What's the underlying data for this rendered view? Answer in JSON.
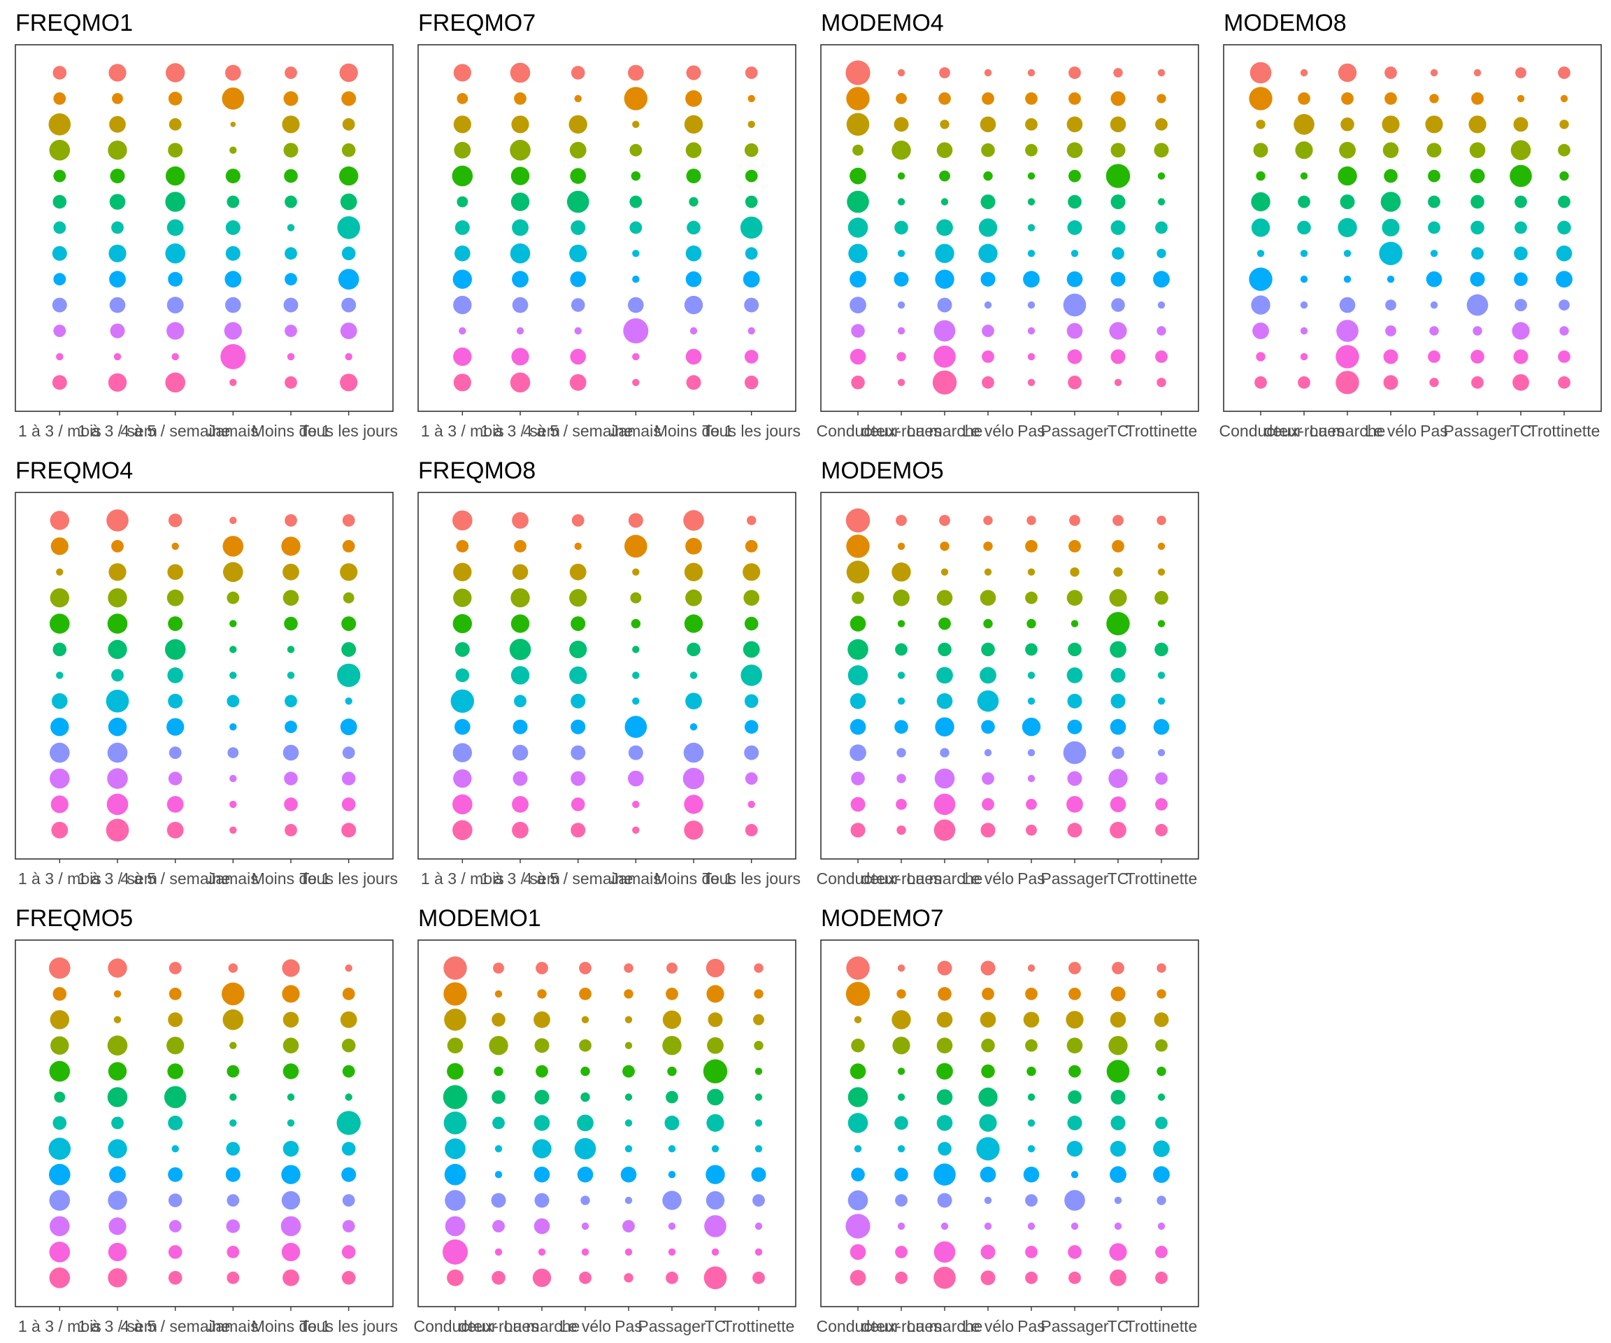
{
  "colors": [
    "#F8766D",
    "#E18A00",
    "#BE9C00",
    "#8CAB00",
    "#24B700",
    "#00BE70",
    "#00C1AB",
    "#00BBDA",
    "#00ACFC",
    "#8B93FF",
    "#D575FE",
    "#F962DD",
    "#FF65AC"
  ],
  "size_scale": {
    "min_radius": 1.5,
    "max_radius": 18
  },
  "chart_data": [
    {
      "type": "scatter",
      "title": "FREQMO1",
      "categories": [
        "1 à 3 / mois",
        "1 à 3 / sem",
        "4 à 5 / semaine",
        "Jamais",
        "Moins de 1",
        "Tous les jours"
      ],
      "rows": 13,
      "values": [
        [
          0.25,
          0.45,
          0.55,
          0.35,
          0.2,
          0.5
        ],
        [
          0.2,
          0.15,
          0.25,
          0.75,
          0.3,
          0.3
        ],
        [
          0.75,
          0.4,
          0.2,
          0.02,
          0.45,
          0.2
        ],
        [
          0.65,
          0.55,
          0.3,
          0.05,
          0.3,
          0.25
        ],
        [
          0.2,
          0.3,
          0.55,
          0.3,
          0.25,
          0.55
        ],
        [
          0.25,
          0.35,
          0.6,
          0.2,
          0.2,
          0.4
        ],
        [
          0.2,
          0.2,
          0.4,
          0.3,
          0.05,
          0.8
        ],
        [
          0.3,
          0.45,
          0.6,
          0.3,
          0.2,
          0.25
        ],
        [
          0.2,
          0.4,
          0.3,
          0.4,
          0.2,
          0.65
        ],
        [
          0.3,
          0.35,
          0.4,
          0.35,
          0.3,
          0.3
        ],
        [
          0.2,
          0.3,
          0.45,
          0.45,
          0.2,
          0.4
        ],
        [
          0.05,
          0.05,
          0.05,
          1.0,
          0.05,
          0.05
        ],
        [
          0.3,
          0.5,
          0.6,
          0.05,
          0.2,
          0.45
        ]
      ]
    },
    {
      "type": "scatter",
      "title": "FREQMO7",
      "categories": [
        "1 à 3 / mois",
        "1 à 3 / sem",
        "4 à 5 / semaine",
        "Jamais",
        "Moins de 1",
        "Tous les jours"
      ],
      "rows": 13,
      "values": [
        [
          0.45,
          0.6,
          0.25,
          0.35,
          0.3,
          0.2
        ],
        [
          0.15,
          0.2,
          0.05,
          0.85,
          0.4,
          0.05
        ],
        [
          0.45,
          0.45,
          0.5,
          0.05,
          0.5,
          0.05
        ],
        [
          0.4,
          0.65,
          0.4,
          0.2,
          0.35,
          0.25
        ],
        [
          0.65,
          0.5,
          0.35,
          0.1,
          0.3,
          0.2
        ],
        [
          0.15,
          0.5,
          0.75,
          0.2,
          0.1,
          0.2
        ],
        [
          0.3,
          0.4,
          0.3,
          0.2,
          0.25,
          0.75
        ],
        [
          0.35,
          0.6,
          0.45,
          0.05,
          0.35,
          0.2
        ],
        [
          0.55,
          0.4,
          0.35,
          0.05,
          0.35,
          0.4
        ],
        [
          0.5,
          0.35,
          0.25,
          0.35,
          0.5,
          0.3
        ],
        [
          0.05,
          0.05,
          0.05,
          1.0,
          0.05,
          0.05
        ],
        [
          0.5,
          0.45,
          0.35,
          0.05,
          0.35,
          0.25
        ],
        [
          0.45,
          0.6,
          0.4,
          0.05,
          0.3,
          0.25
        ]
      ]
    },
    {
      "type": "scatter",
      "title": "MODEMO4",
      "categories": [
        "Conducteur",
        "deux-roues",
        "La marche",
        "Le vélo",
        "Pas",
        "Passager",
        "TC",
        "Trottinette"
      ],
      "rows": 13,
      "values": [
        [
          0.95,
          0.05,
          0.15,
          0.05,
          0.05,
          0.2,
          0.1,
          0.05
        ],
        [
          0.85,
          0.15,
          0.2,
          0.2,
          0.2,
          0.2,
          0.3,
          0.1
        ],
        [
          0.8,
          0.3,
          0.1,
          0.35,
          0.2,
          0.35,
          0.35,
          0.2
        ],
        [
          0.15,
          0.55,
          0.35,
          0.25,
          0.2,
          0.35,
          0.3,
          0.3
        ],
        [
          0.4,
          0.05,
          0.15,
          0.1,
          0.05,
          0.2,
          0.9,
          0.05
        ],
        [
          0.75,
          0.05,
          0.05,
          0.3,
          0.05,
          0.25,
          0.3,
          0.05
        ],
        [
          0.6,
          0.25,
          0.4,
          0.5,
          0.05,
          0.3,
          0.3,
          0.2
        ],
        [
          0.55,
          0.05,
          0.55,
          0.55,
          0.05,
          0.05,
          0.2,
          0.1
        ],
        [
          0.4,
          0.3,
          0.55,
          0.3,
          0.4,
          0.35,
          0.3,
          0.4
        ],
        [
          0.4,
          0.05,
          0.3,
          0.05,
          0.05,
          0.8,
          0.25,
          0.05
        ],
        [
          0.25,
          0.05,
          0.7,
          0.2,
          0.05,
          0.35,
          0.45,
          0.1
        ],
        [
          0.35,
          0.1,
          0.75,
          0.2,
          0.05,
          0.3,
          0.3,
          0.2
        ],
        [
          0.25,
          0.05,
          0.9,
          0.2,
          0.05,
          0.25,
          0.05,
          0.1
        ]
      ]
    },
    {
      "type": "scatter",
      "title": "MODEMO8",
      "categories": [
        "Conducteur",
        "deux-roues",
        "La marche",
        "Le vélo",
        "Pas",
        "Passager",
        "TC",
        "Trottinette"
      ],
      "rows": 13,
      "values": [
        [
          0.7,
          0.05,
          0.5,
          0.2,
          0.05,
          0.05,
          0.15,
          0.2
        ],
        [
          0.85,
          0.2,
          0.2,
          0.2,
          0.1,
          0.2,
          0.05,
          0.05
        ],
        [
          0.1,
          0.65,
          0.25,
          0.45,
          0.45,
          0.45,
          0.3,
          0.1
        ],
        [
          0.3,
          0.45,
          0.4,
          0.35,
          0.3,
          0.35,
          0.6,
          0.2
        ],
        [
          0.1,
          0.05,
          0.55,
          0.25,
          0.2,
          0.3,
          0.75,
          0.1
        ],
        [
          0.55,
          0.2,
          0.3,
          0.6,
          0.2,
          0.25,
          0.2,
          0.2
        ],
        [
          0.5,
          0.25,
          0.55,
          0.45,
          0.2,
          0.25,
          0.2,
          0.25
        ],
        [
          0.05,
          0.05,
          0.05,
          0.85,
          0.05,
          0.2,
          0.25,
          0.35
        ],
        [
          0.85,
          0.05,
          0.05,
          0.05,
          0.35,
          0.3,
          0.25,
          0.4
        ],
        [
          0.55,
          0.05,
          0.35,
          0.15,
          0.05,
          0.7,
          0.2,
          0.15
        ],
        [
          0.4,
          0.05,
          0.75,
          0.15,
          0.1,
          0.1,
          0.45,
          0.1
        ],
        [
          0.1,
          0.05,
          0.85,
          0.3,
          0.2,
          0.25,
          0.3,
          0.2
        ],
        [
          0.2,
          0.2,
          0.85,
          0.3,
          0.1,
          0.2,
          0.4,
          0.2
        ]
      ]
    },
    {
      "type": "scatter",
      "title": "FREQMO4",
      "categories": [
        "1 à 3 / mois",
        "1 à 3 / sem",
        "4 à 5 / semaine",
        "Jamais",
        "Moins de 1",
        "Tous les jours"
      ],
      "rows": 13,
      "values": [
        [
          0.55,
          0.75,
          0.25,
          0.05,
          0.2,
          0.2
        ],
        [
          0.45,
          0.2,
          0.05,
          0.65,
          0.55,
          0.2
        ],
        [
          0.05,
          0.45,
          0.35,
          0.6,
          0.4,
          0.45
        ],
        [
          0.55,
          0.55,
          0.4,
          0.2,
          0.35,
          0.15
        ],
        [
          0.6,
          0.6,
          0.3,
          0.05,
          0.25,
          0.3
        ],
        [
          0.25,
          0.55,
          0.65,
          0.05,
          0.05,
          0.3
        ],
        [
          0.05,
          0.2,
          0.35,
          0.05,
          0.05,
          0.85
        ],
        [
          0.35,
          0.8,
          0.3,
          0.2,
          0.2,
          0.05
        ],
        [
          0.5,
          0.5,
          0.45,
          0.05,
          0.2,
          0.4
        ],
        [
          0.6,
          0.6,
          0.2,
          0.15,
          0.35,
          0.2
        ],
        [
          0.6,
          0.65,
          0.25,
          0.05,
          0.25,
          0.25
        ],
        [
          0.45,
          0.7,
          0.4,
          0.05,
          0.25,
          0.25
        ],
        [
          0.4,
          0.8,
          0.4,
          0.05,
          0.2,
          0.3
        ]
      ]
    },
    {
      "type": "scatter",
      "title": "FREQMO8",
      "categories": [
        "1 à 3 / mois",
        "1 à 3 / sem",
        "4 à 5 / semaine",
        "Jamais",
        "Moins de 1",
        "Tous les jours"
      ],
      "rows": 13,
      "values": [
        [
          0.6,
          0.4,
          0.2,
          0.3,
          0.65,
          0.1
        ],
        [
          0.2,
          0.2,
          0.05,
          0.8,
          0.4,
          0.2
        ],
        [
          0.5,
          0.35,
          0.4,
          0.05,
          0.5,
          0.45
        ],
        [
          0.5,
          0.55,
          0.45,
          0.15,
          0.4,
          0.35
        ],
        [
          0.55,
          0.5,
          0.3,
          0.1,
          0.5,
          0.25
        ],
        [
          0.3,
          0.7,
          0.45,
          0.05,
          0.25,
          0.4
        ],
        [
          0.25,
          0.5,
          0.45,
          0.05,
          0.05,
          0.7
        ],
        [
          0.85,
          0.2,
          0.3,
          0.05,
          0.4,
          0.25
        ],
        [
          0.35,
          0.3,
          0.3,
          0.75,
          0.05,
          0.25
        ],
        [
          0.55,
          0.35,
          0.3,
          0.3,
          0.6,
          0.3
        ],
        [
          0.5,
          0.3,
          0.3,
          0.35,
          0.7,
          0.2
        ],
        [
          0.6,
          0.4,
          0.25,
          0.05,
          0.55,
          0.05
        ],
        [
          0.6,
          0.4,
          0.3,
          0.05,
          0.55,
          0.2
        ]
      ]
    },
    {
      "type": "scatter",
      "title": "MODEMO5",
      "categories": [
        "Conducteur",
        "deux-roues",
        "La marche",
        "Le vélo",
        "Pas",
        "Passager",
        "TC",
        "Trottinette"
      ],
      "rows": 13,
      "values": [
        [
          0.9,
          0.15,
          0.15,
          0.1,
          0.1,
          0.15,
          0.15,
          0.1
        ],
        [
          0.85,
          0.05,
          0.1,
          0.1,
          0.2,
          0.2,
          0.2,
          0.05
        ],
        [
          0.8,
          0.55,
          0.05,
          0.05,
          0.05,
          0.1,
          0.1,
          0.05
        ],
        [
          0.2,
          0.4,
          0.35,
          0.35,
          0.2,
          0.35,
          0.45,
          0.25
        ],
        [
          0.35,
          0.05,
          0.2,
          0.1,
          0.1,
          0.05,
          0.85,
          0.05
        ],
        [
          0.65,
          0.2,
          0.25,
          0.25,
          0.2,
          0.25,
          0.4,
          0.25
        ],
        [
          0.6,
          0.05,
          0.4,
          0.4,
          0.05,
          0.35,
          0.3,
          0.05
        ],
        [
          0.35,
          0.05,
          0.35,
          0.7,
          0.05,
          0.3,
          0.3,
          0.05
        ],
        [
          0.35,
          0.25,
          0.55,
          0.25,
          0.5,
          0.3,
          0.35,
          0.35
        ],
        [
          0.4,
          0.1,
          0.1,
          0.05,
          0.05,
          0.8,
          0.2,
          0.05
        ],
        [
          0.25,
          0.1,
          0.6,
          0.2,
          0.05,
          0.3,
          0.55,
          0.2
        ],
        [
          0.3,
          0.15,
          0.7,
          0.2,
          0.15,
          0.4,
          0.35,
          0.2
        ],
        [
          0.3,
          0.1,
          0.7,
          0.3,
          0.15,
          0.3,
          0.4,
          0.2
        ]
      ]
    },
    {
      "type": "scatter",
      "title": "FREQMO5",
      "categories": [
        "1 à 3 / mois",
        "1 à 3 / sem",
        "4 à 5 / semaine",
        "Jamais",
        "Moins de 1",
        "Tous les jours"
      ],
      "rows": 13,
      "values": [
        [
          0.7,
          0.55,
          0.2,
          0.1,
          0.45,
          0.05
        ],
        [
          0.25,
          0.05,
          0.2,
          0.8,
          0.45,
          0.2
        ],
        [
          0.55,
          0.05,
          0.3,
          0.65,
          0.35,
          0.4
        ],
        [
          0.5,
          0.6,
          0.45,
          0.05,
          0.35,
          0.25
        ],
        [
          0.65,
          0.5,
          0.35,
          0.2,
          0.35,
          0.2
        ],
        [
          0.15,
          0.6,
          0.75,
          0.05,
          0.05,
          0.05
        ],
        [
          0.25,
          0.2,
          0.3,
          0.05,
          0.05,
          0.9
        ],
        [
          0.75,
          0.55,
          0.05,
          0.25,
          0.35,
          0.25
        ],
        [
          0.7,
          0.4,
          0.3,
          0.3,
          0.55,
          0.3
        ],
        [
          0.65,
          0.55,
          0.25,
          0.2,
          0.5,
          0.2
        ],
        [
          0.6,
          0.45,
          0.2,
          0.25,
          0.6,
          0.2
        ],
        [
          0.65,
          0.5,
          0.25,
          0.2,
          0.5,
          0.25
        ],
        [
          0.65,
          0.55,
          0.25,
          0.2,
          0.4,
          0.25
        ]
      ]
    },
    {
      "type": "scatter",
      "title": "MODEMO1",
      "categories": [
        "Conducteur",
        "deux-roues",
        "La marche",
        "Le vélo",
        "Pas",
        "Passager",
        "TC",
        "Trottinette"
      ],
      "rows": 13,
      "values": [
        [
          0.85,
          0.15,
          0.2,
          0.2,
          0.1,
          0.15,
          0.5,
          0.1
        ],
        [
          0.85,
          0.05,
          0.1,
          0.2,
          0.1,
          0.2,
          0.45,
          0.1
        ],
        [
          0.75,
          0.25,
          0.4,
          0.05,
          0.05,
          0.5,
          0.3,
          0.15
        ],
        [
          0.35,
          0.55,
          0.3,
          0.2,
          0.05,
          0.55,
          0.4,
          0.1
        ],
        [
          0.4,
          0.1,
          0.2,
          0.1,
          0.2,
          0.1,
          0.9,
          0.05
        ],
        [
          0.9,
          0.25,
          0.3,
          0.1,
          0.05,
          0.2,
          0.4,
          0.05
        ],
        [
          0.8,
          0.2,
          0.35,
          0.4,
          0.05,
          0.3,
          0.45,
          0.05
        ],
        [
          0.65,
          0.05,
          0.55,
          0.7,
          0.05,
          0.05,
          0.05,
          0.05
        ],
        [
          0.7,
          0.05,
          0.35,
          0.35,
          0.35,
          0.05,
          0.55,
          0.3
        ],
        [
          0.65,
          0.3,
          0.3,
          0.1,
          0.05,
          0.55,
          0.5,
          0.2
        ],
        [
          0.6,
          0.2,
          0.35,
          0.05,
          0.2,
          0.05,
          0.75,
          0.05
        ],
        [
          1.0,
          0.05,
          0.05,
          0.05,
          0.05,
          0.05,
          0.05,
          0.05
        ],
        [
          0.4,
          0.25,
          0.5,
          0.2,
          0.1,
          0.2,
          0.8,
          0.2
        ]
      ]
    },
    {
      "type": "scatter",
      "title": "MODEMO7",
      "categories": [
        "Conducteur",
        "deux-roues",
        "La marche",
        "Le vélo",
        "Pas",
        "Passager",
        "TC",
        "Trottinette"
      ],
      "rows": 13,
      "values": [
        [
          0.85,
          0.05,
          0.3,
          0.3,
          0.05,
          0.2,
          0.2,
          0.1
        ],
        [
          0.9,
          0.1,
          0.25,
          0.2,
          0.2,
          0.2,
          0.3,
          0.1
        ],
        [
          0.05,
          0.55,
          0.35,
          0.35,
          0.35,
          0.45,
          0.35,
          0.3
        ],
        [
          0.25,
          0.45,
          0.35,
          0.25,
          0.2,
          0.35,
          0.55,
          0.2
        ],
        [
          0.35,
          0.05,
          0.4,
          0.25,
          0.1,
          0.2,
          0.8,
          0.1
        ],
        [
          0.6,
          0.05,
          0.35,
          0.55,
          0.05,
          0.25,
          0.3,
          0.05
        ],
        [
          0.6,
          0.25,
          0.35,
          0.45,
          0.05,
          0.3,
          0.3,
          0.2
        ],
        [
          0.05,
          0.05,
          0.25,
          0.85,
          0.05,
          0.35,
          0.35,
          0.4
        ],
        [
          0.25,
          0.25,
          0.75,
          0.35,
          0.35,
          0.05,
          0.4,
          0.4
        ],
        [
          0.6,
          0.2,
          0.3,
          0.05,
          0.2,
          0.65,
          0.05,
          0.1
        ],
        [
          0.95,
          0.05,
          0.05,
          0.05,
          0.05,
          0.05,
          0.05,
          0.05
        ],
        [
          0.35,
          0.2,
          0.7,
          0.3,
          0.2,
          0.25,
          0.45,
          0.2
        ],
        [
          0.35,
          0.2,
          0.75,
          0.3,
          0.2,
          0.2,
          0.4,
          0.2
        ]
      ]
    }
  ]
}
